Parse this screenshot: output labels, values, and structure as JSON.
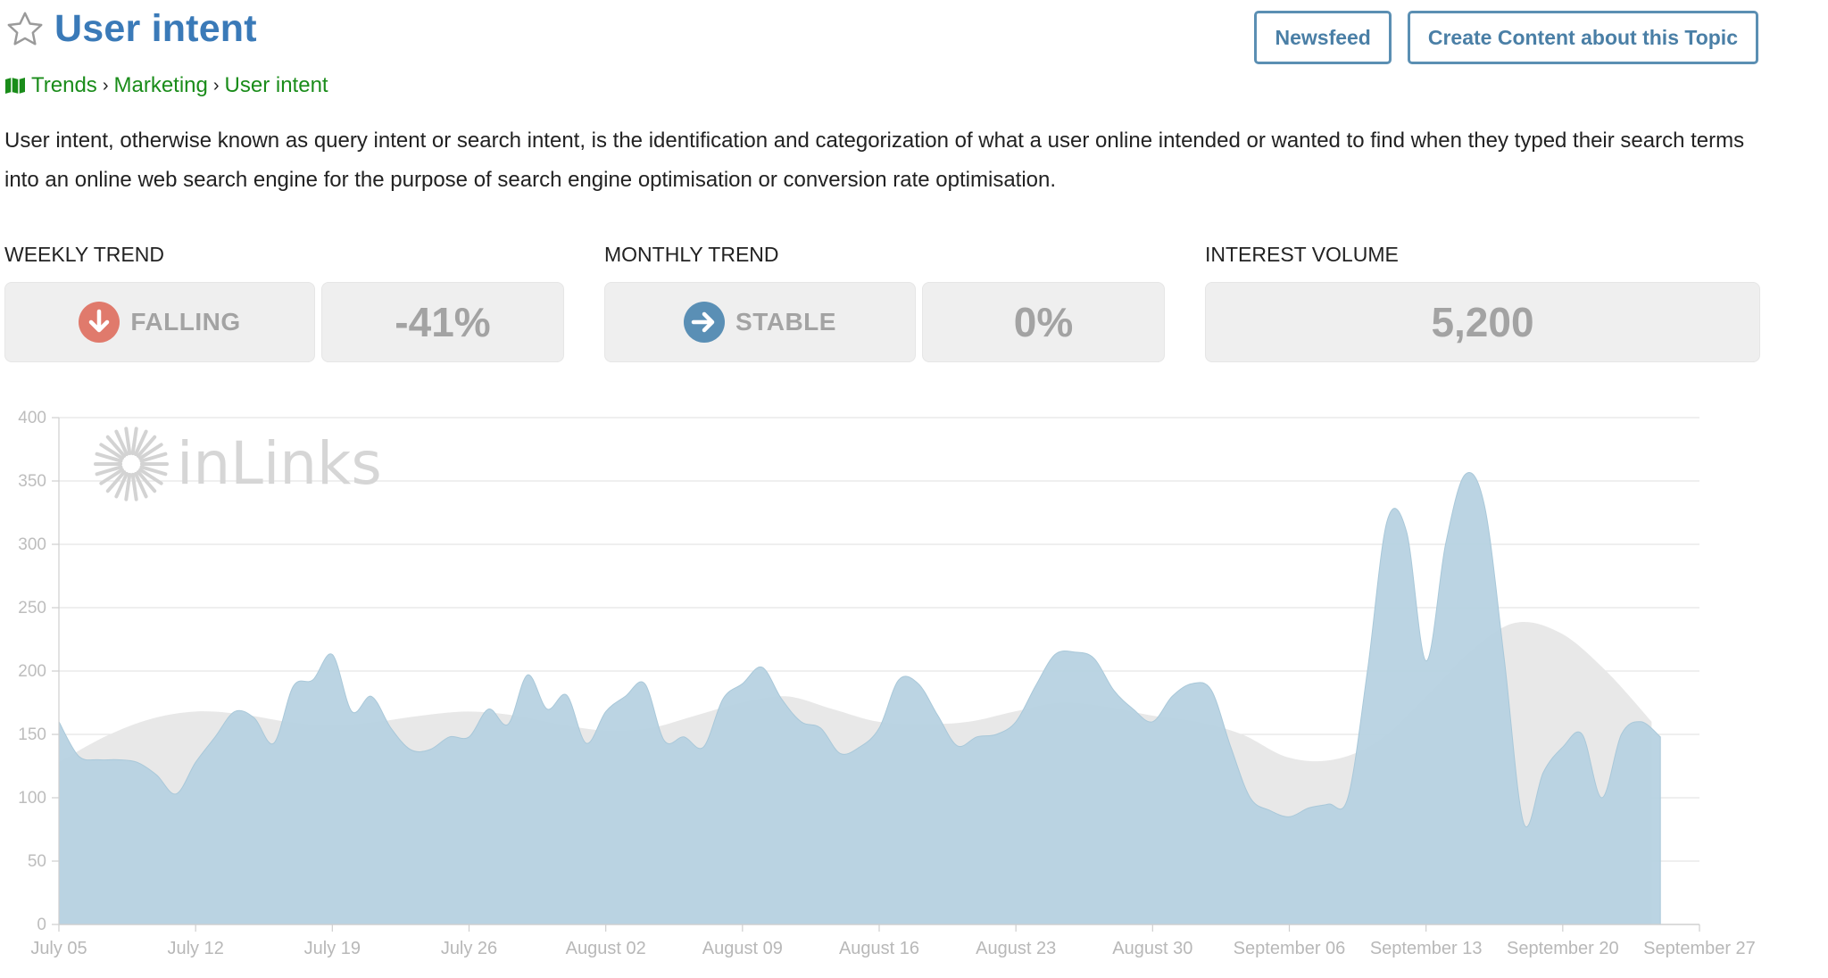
{
  "header": {
    "title": "User intent"
  },
  "buttons": {
    "newsfeed": "Newsfeed",
    "create_content": "Create Content about this Topic"
  },
  "breadcrumb": [
    "Trends",
    "Marketing",
    "User intent"
  ],
  "description": "User intent, otherwise known as query intent or search intent, is the identification and categorization of what a user online intended or wanted to find when they typed their search terms into an online web search engine for the purpose of search engine optimisation or conversion rate optimisation.",
  "stats": {
    "weekly": {
      "label": "WEEKLY TREND",
      "status": "FALLING",
      "value": "-41%"
    },
    "monthly": {
      "label": "MONTHLY TREND",
      "status": "STABLE",
      "value": "0%"
    },
    "interest": {
      "label": "INTEREST VOLUME",
      "value": "5,200"
    }
  },
  "colors": {
    "title": "#3a7ab8",
    "breadcrumb": "#1a8c1a",
    "falling": "#e07a6c",
    "stable": "#5a8fb5",
    "series": "#b7d2e1",
    "trend": "#e8e8e8"
  },
  "icons": {
    "favorite": "star-icon",
    "breadcrumb": "map-icon",
    "falling": "arrow-down-circle-icon",
    "stable": "arrow-right-circle-icon"
  },
  "watermark": "inLinks",
  "chart_data": {
    "type": "area",
    "x_labels": [
      "July 05",
      "July 12",
      "July 19",
      "July 26",
      "August 02",
      "August 09",
      "August 16",
      "August 23",
      "August 30",
      "September 06",
      "September 13",
      "September 20",
      "September 27"
    ],
    "ylim": [
      0,
      400
    ],
    "y_ticks": [
      0,
      50,
      100,
      150,
      200,
      250,
      300,
      350,
      400
    ],
    "grid": true,
    "series": [
      {
        "role": "daily",
        "values": [
          160,
          133,
          130,
          130,
          128,
          118,
          103,
          128,
          148,
          168,
          163,
          143,
          188,
          193,
          213,
          168,
          180,
          155,
          138,
          138,
          148,
          148,
          170,
          158,
          197,
          170,
          181,
          143,
          168,
          180,
          190,
          145,
          148,
          140,
          178,
          190,
          203,
          178,
          160,
          155,
          135,
          140,
          155,
          193,
          190,
          165,
          141,
          148,
          150,
          160,
          188,
          213,
          215,
          210,
          185,
          170,
          160,
          180,
          190,
          185,
          140,
          100,
          90,
          85,
          92,
          95,
          100,
          200,
          318,
          310,
          208,
          300,
          355,
          330,
          210,
          80,
          120,
          140,
          150,
          100,
          150,
          160,
          148
        ],
        "x_step_days": 1
      },
      {
        "role": "trend",
        "values": [
          128,
          148,
          162,
          168,
          166,
          160,
          157,
          160,
          165,
          168,
          165,
          158,
          153,
          155,
          165,
          175,
          180,
          170,
          160,
          158,
          160,
          168,
          175,
          172,
          165,
          160,
          150,
          132,
          130,
          145,
          178,
          215,
          238,
          230,
          200,
          160
        ],
        "x_step_days": 2.33
      }
    ]
  }
}
